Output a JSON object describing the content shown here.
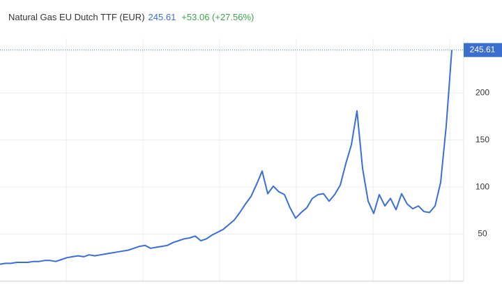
{
  "chart_data": {
    "type": "line",
    "title": "Natural Gas EU Dutch TTF (EUR)",
    "price": 245.61,
    "change": "+53.06 (+27.56%)",
    "series": [
      {
        "name": "Natural Gas EU Dutch TTF (EUR)",
        "color": "#3a6fd1",
        "values": [
          18,
          19,
          19,
          20,
          20,
          20,
          21,
          21,
          22,
          22,
          21,
          23,
          25,
          26,
          27,
          26,
          28,
          27,
          28,
          29,
          30,
          31,
          32,
          33,
          35,
          37,
          38,
          35,
          36,
          37,
          38,
          41,
          43,
          45,
          46,
          48,
          43,
          45,
          49,
          52,
          55,
          60,
          65,
          73,
          82,
          90,
          103,
          117,
          93,
          101,
          95,
          92,
          78,
          67,
          73,
          78,
          88,
          92,
          93,
          85,
          92,
          102,
          125,
          145,
          181,
          120,
          85,
          72,
          92,
          80,
          88,
          76,
          93,
          82,
          77,
          80,
          74,
          73,
          80,
          105,
          165,
          245.61
        ]
      }
    ],
    "ylim": [
      0,
      258
    ],
    "yticks": [
      50,
      100,
      150,
      200
    ],
    "grid": true
  }
}
